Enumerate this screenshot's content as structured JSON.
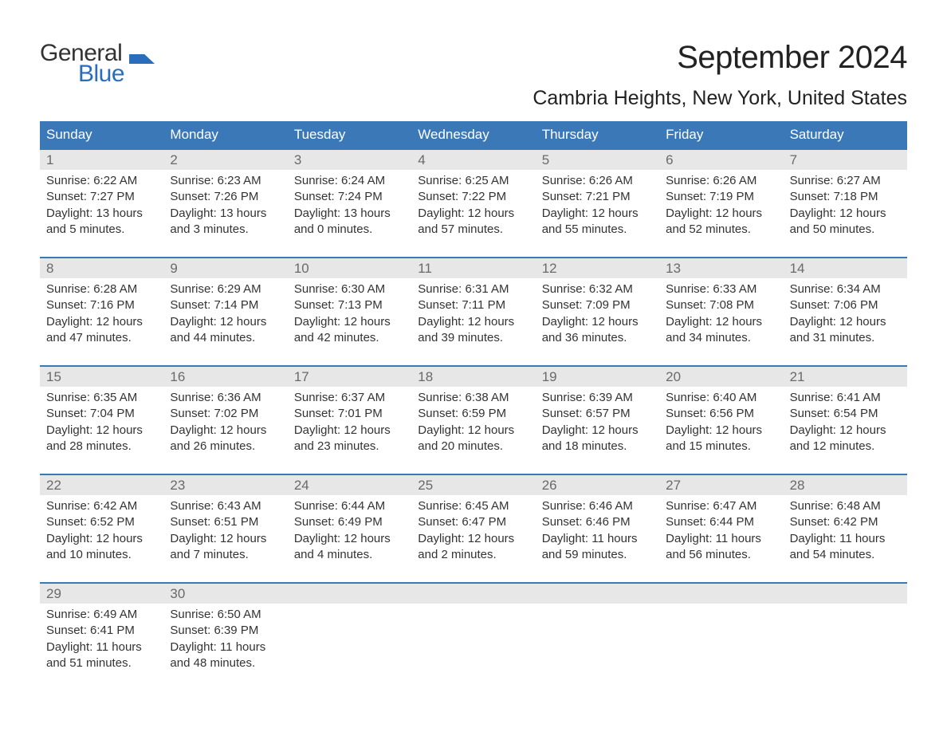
{
  "logo": {
    "line1": "General",
    "line2": "Blue"
  },
  "title": "September 2024",
  "location": "Cambria Heights, New York, United States",
  "colors": {
    "header_bg": "#3b78b8",
    "header_text": "#ffffff",
    "daynum_bg": "#e7e7e7",
    "daynum_text": "#6a6a6a",
    "body_text": "#333333",
    "accent": "#2a6ebb",
    "page_bg": "#ffffff"
  },
  "typography": {
    "title_fontsize": 40,
    "location_fontsize": 25,
    "dow_fontsize": 17,
    "daynum_fontsize": 17,
    "body_fontsize": 15
  },
  "days_of_week": [
    "Sunday",
    "Monday",
    "Tuesday",
    "Wednesday",
    "Thursday",
    "Friday",
    "Saturday"
  ],
  "weeks": [
    [
      {
        "num": "1",
        "sunrise": "Sunrise: 6:22 AM",
        "sunset": "Sunset: 7:27 PM",
        "daylight": "Daylight: 13 hours and 5 minutes."
      },
      {
        "num": "2",
        "sunrise": "Sunrise: 6:23 AM",
        "sunset": "Sunset: 7:26 PM",
        "daylight": "Daylight: 13 hours and 3 minutes."
      },
      {
        "num": "3",
        "sunrise": "Sunrise: 6:24 AM",
        "sunset": "Sunset: 7:24 PM",
        "daylight": "Daylight: 13 hours and 0 minutes."
      },
      {
        "num": "4",
        "sunrise": "Sunrise: 6:25 AM",
        "sunset": "Sunset: 7:22 PM",
        "daylight": "Daylight: 12 hours and 57 minutes."
      },
      {
        "num": "5",
        "sunrise": "Sunrise: 6:26 AM",
        "sunset": "Sunset: 7:21 PM",
        "daylight": "Daylight: 12 hours and 55 minutes."
      },
      {
        "num": "6",
        "sunrise": "Sunrise: 6:26 AM",
        "sunset": "Sunset: 7:19 PM",
        "daylight": "Daylight: 12 hours and 52 minutes."
      },
      {
        "num": "7",
        "sunrise": "Sunrise: 6:27 AM",
        "sunset": "Sunset: 7:18 PM",
        "daylight": "Daylight: 12 hours and 50 minutes."
      }
    ],
    [
      {
        "num": "8",
        "sunrise": "Sunrise: 6:28 AM",
        "sunset": "Sunset: 7:16 PM",
        "daylight": "Daylight: 12 hours and 47 minutes."
      },
      {
        "num": "9",
        "sunrise": "Sunrise: 6:29 AM",
        "sunset": "Sunset: 7:14 PM",
        "daylight": "Daylight: 12 hours and 44 minutes."
      },
      {
        "num": "10",
        "sunrise": "Sunrise: 6:30 AM",
        "sunset": "Sunset: 7:13 PM",
        "daylight": "Daylight: 12 hours and 42 minutes."
      },
      {
        "num": "11",
        "sunrise": "Sunrise: 6:31 AM",
        "sunset": "Sunset: 7:11 PM",
        "daylight": "Daylight: 12 hours and 39 minutes."
      },
      {
        "num": "12",
        "sunrise": "Sunrise: 6:32 AM",
        "sunset": "Sunset: 7:09 PM",
        "daylight": "Daylight: 12 hours and 36 minutes."
      },
      {
        "num": "13",
        "sunrise": "Sunrise: 6:33 AM",
        "sunset": "Sunset: 7:08 PM",
        "daylight": "Daylight: 12 hours and 34 minutes."
      },
      {
        "num": "14",
        "sunrise": "Sunrise: 6:34 AM",
        "sunset": "Sunset: 7:06 PM",
        "daylight": "Daylight: 12 hours and 31 minutes."
      }
    ],
    [
      {
        "num": "15",
        "sunrise": "Sunrise: 6:35 AM",
        "sunset": "Sunset: 7:04 PM",
        "daylight": "Daylight: 12 hours and 28 minutes."
      },
      {
        "num": "16",
        "sunrise": "Sunrise: 6:36 AM",
        "sunset": "Sunset: 7:02 PM",
        "daylight": "Daylight: 12 hours and 26 minutes."
      },
      {
        "num": "17",
        "sunrise": "Sunrise: 6:37 AM",
        "sunset": "Sunset: 7:01 PM",
        "daylight": "Daylight: 12 hours and 23 minutes."
      },
      {
        "num": "18",
        "sunrise": "Sunrise: 6:38 AM",
        "sunset": "Sunset: 6:59 PM",
        "daylight": "Daylight: 12 hours and 20 minutes."
      },
      {
        "num": "19",
        "sunrise": "Sunrise: 6:39 AM",
        "sunset": "Sunset: 6:57 PM",
        "daylight": "Daylight: 12 hours and 18 minutes."
      },
      {
        "num": "20",
        "sunrise": "Sunrise: 6:40 AM",
        "sunset": "Sunset: 6:56 PM",
        "daylight": "Daylight: 12 hours and 15 minutes."
      },
      {
        "num": "21",
        "sunrise": "Sunrise: 6:41 AM",
        "sunset": "Sunset: 6:54 PM",
        "daylight": "Daylight: 12 hours and 12 minutes."
      }
    ],
    [
      {
        "num": "22",
        "sunrise": "Sunrise: 6:42 AM",
        "sunset": "Sunset: 6:52 PM",
        "daylight": "Daylight: 12 hours and 10 minutes."
      },
      {
        "num": "23",
        "sunrise": "Sunrise: 6:43 AM",
        "sunset": "Sunset: 6:51 PM",
        "daylight": "Daylight: 12 hours and 7 minutes."
      },
      {
        "num": "24",
        "sunrise": "Sunrise: 6:44 AM",
        "sunset": "Sunset: 6:49 PM",
        "daylight": "Daylight: 12 hours and 4 minutes."
      },
      {
        "num": "25",
        "sunrise": "Sunrise: 6:45 AM",
        "sunset": "Sunset: 6:47 PM",
        "daylight": "Daylight: 12 hours and 2 minutes."
      },
      {
        "num": "26",
        "sunrise": "Sunrise: 6:46 AM",
        "sunset": "Sunset: 6:46 PM",
        "daylight": "Daylight: 11 hours and 59 minutes."
      },
      {
        "num": "27",
        "sunrise": "Sunrise: 6:47 AM",
        "sunset": "Sunset: 6:44 PM",
        "daylight": "Daylight: 11 hours and 56 minutes."
      },
      {
        "num": "28",
        "sunrise": "Sunrise: 6:48 AM",
        "sunset": "Sunset: 6:42 PM",
        "daylight": "Daylight: 11 hours and 54 minutes."
      }
    ],
    [
      {
        "num": "29",
        "sunrise": "Sunrise: 6:49 AM",
        "sunset": "Sunset: 6:41 PM",
        "daylight": "Daylight: 11 hours and 51 minutes."
      },
      {
        "num": "30",
        "sunrise": "Sunrise: 6:50 AM",
        "sunset": "Sunset: 6:39 PM",
        "daylight": "Daylight: 11 hours and 48 minutes."
      },
      null,
      null,
      null,
      null,
      null
    ]
  ]
}
